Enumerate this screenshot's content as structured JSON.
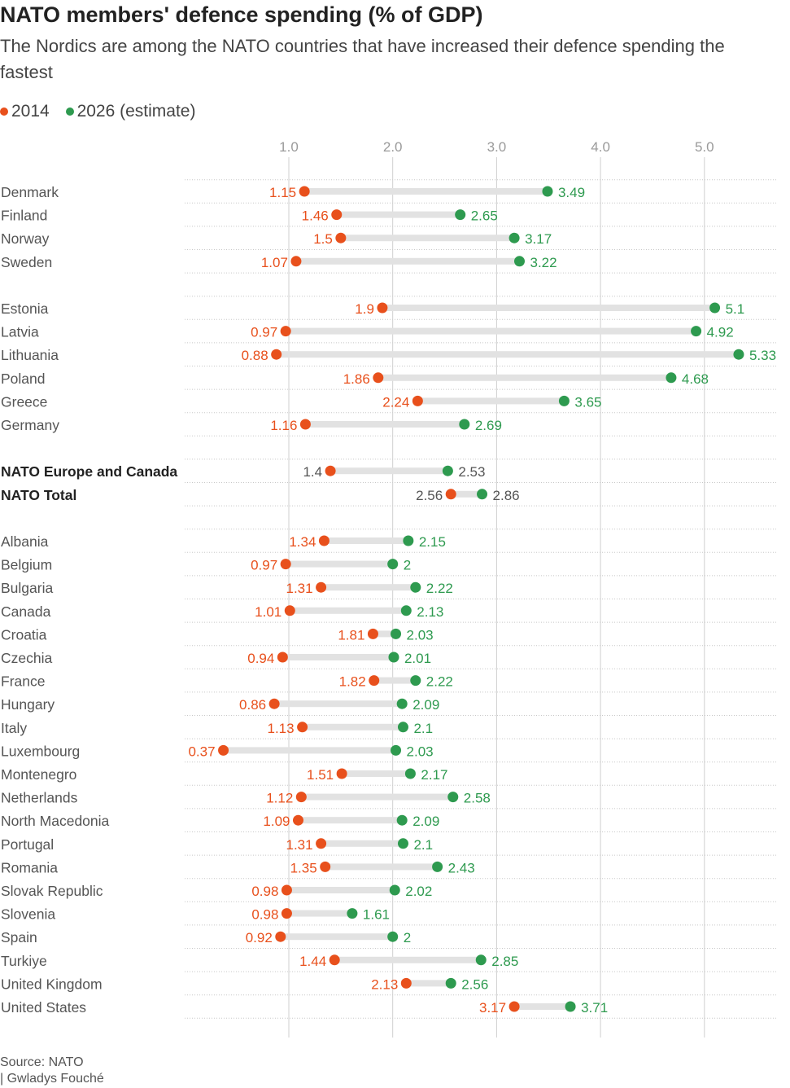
{
  "title": "NATO members' defence spending (% of GDP)",
  "subtitle": "The Nordics are among the NATO countries that have increased their defence spending the fastest",
  "legend": [
    {
      "label": "2014",
      "color": "#e8501c"
    },
    {
      "label": "2026 (estimate)",
      "color": "#2e9a4f"
    }
  ],
  "source": "Source: NATO",
  "credit": "| Gwladys Fouché",
  "chart_data": {
    "type": "dumbbell",
    "x_ticks": [
      "1.0",
      "2.0",
      "3.0",
      "4.0",
      "5.0"
    ],
    "xlim": [
      0,
      5.5
    ],
    "grid": true,
    "series": [
      {
        "name": "2014",
        "color": "#e8501c"
      },
      {
        "name": "2026 (estimate)",
        "color": "#2e9a4f"
      }
    ],
    "groups": [
      {
        "rows": [
          {
            "label": "Denmark",
            "v2014": 1.15,
            "v2026": 3.49
          },
          {
            "label": "Finland",
            "v2014": 1.46,
            "v2026": 2.65
          },
          {
            "label": "Norway",
            "v2014": 1.5,
            "v2026": 3.17
          },
          {
            "label": "Sweden",
            "v2014": 1.07,
            "v2026": 3.22
          }
        ]
      },
      {
        "rows": [
          {
            "label": "Estonia",
            "v2014": 1.9,
            "v2026": 5.1
          },
          {
            "label": "Latvia",
            "v2014": 0.97,
            "v2026": 4.92
          },
          {
            "label": "Lithuania",
            "v2014": 0.88,
            "v2026": 5.33
          },
          {
            "label": "Poland",
            "v2014": 1.86,
            "v2026": 4.68
          },
          {
            "label": "Greece",
            "v2014": 2.24,
            "v2026": 3.65
          },
          {
            "label": "Germany",
            "v2014": 1.16,
            "v2026": 2.69
          }
        ]
      },
      {
        "rows": [
          {
            "label": "NATO Europe and Canada",
            "v2014": 1.4,
            "v2026": 2.53,
            "bold": true
          },
          {
            "label": "NATO Total",
            "v2014": 2.56,
            "v2026": 2.86,
            "bold": true
          }
        ]
      },
      {
        "rows": [
          {
            "label": "Albania",
            "v2014": 1.34,
            "v2026": 2.15
          },
          {
            "label": "Belgium",
            "v2014": 0.97,
            "v2026": 2
          },
          {
            "label": "Bulgaria",
            "v2014": 1.31,
            "v2026": 2.22
          },
          {
            "label": "Canada",
            "v2014": 1.01,
            "v2026": 2.13
          },
          {
            "label": "Croatia",
            "v2014": 1.81,
            "v2026": 2.03
          },
          {
            "label": "Czechia",
            "v2014": 0.94,
            "v2026": 2.01
          },
          {
            "label": "France",
            "v2014": 1.82,
            "v2026": 2.22
          },
          {
            "label": "Hungary",
            "v2014": 0.86,
            "v2026": 2.09
          },
          {
            "label": "Italy",
            "v2014": 1.13,
            "v2026": 2.1
          },
          {
            "label": "Luxembourg",
            "v2014": 0.37,
            "v2026": 2.03
          },
          {
            "label": "Montenegro",
            "v2014": 1.51,
            "v2026": 2.17
          },
          {
            "label": "Netherlands",
            "v2014": 1.12,
            "v2026": 2.58
          },
          {
            "label": "North Macedonia",
            "v2014": 1.09,
            "v2026": 2.09
          },
          {
            "label": "Portugal",
            "v2014": 1.31,
            "v2026": 2.1
          },
          {
            "label": "Romania",
            "v2014": 1.35,
            "v2026": 2.43
          },
          {
            "label": "Slovak Republic",
            "v2014": 0.98,
            "v2026": 2.02
          },
          {
            "label": "Slovenia",
            "v2014": 0.98,
            "v2026": 1.61
          },
          {
            "label": "Spain",
            "v2014": 0.92,
            "v2026": 2
          },
          {
            "label": "Turkiye",
            "v2014": 1.44,
            "v2026": 2.85
          },
          {
            "label": "United Kingdom",
            "v2014": 2.13,
            "v2026": 2.56
          },
          {
            "label": "United States",
            "v2014": 3.17,
            "v2026": 3.71
          }
        ]
      }
    ]
  }
}
